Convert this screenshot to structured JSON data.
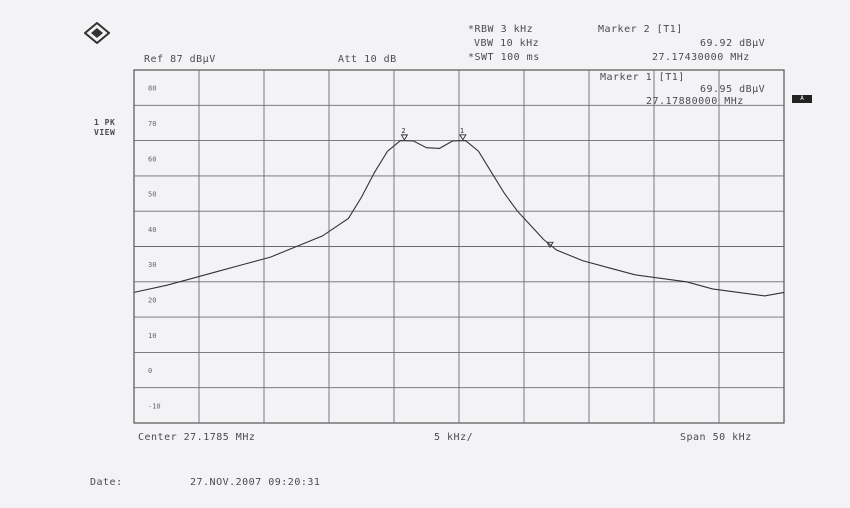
{
  "header": {
    "rbw": "*RBW 3 kHz",
    "vbw": "VBW 10 kHz",
    "swt": "*SWT 100 ms",
    "ref": "Ref 87 dBµV",
    "att": "Att 10 dB",
    "marker2_title": "Marker 2 [T1]",
    "marker2_level": "69.92 dBµV",
    "marker2_freq": "27.17430000 MHz",
    "marker1_title": "Marker 1 [T1]",
    "marker1_level": "69.95 dBµV",
    "marker1_freq": "27.17880000 MHz"
  },
  "left_labels": {
    "rbw_mode": "1 PK",
    "view": "VIEW"
  },
  "side_badge": "A",
  "footer": {
    "center": "Center 27.1785 MHz",
    "div": "5 kHz/",
    "span": "Span 50 kHz",
    "date_label": "Date:",
    "date_value": "27.NOV.2007  09:20:31"
  },
  "chart_data": {
    "type": "line",
    "xlabel": "",
    "ylabel": "",
    "xlim": [
      27.1535,
      27.2035
    ],
    "ylim": [
      -10,
      90
    ],
    "y_ticks": [
      "80",
      "70",
      "60",
      "50",
      "40",
      "30",
      "20",
      "10",
      "0",
      "-10"
    ],
    "grid": true,
    "series": [
      {
        "x": [
          27.1535,
          27.156,
          27.158,
          27.16,
          27.162,
          27.164,
          27.166,
          27.168,
          27.17,
          27.171,
          27.172,
          27.173,
          27.174,
          27.175,
          27.176,
          27.177,
          27.178,
          27.179,
          27.18,
          27.181,
          27.182,
          27.183,
          27.184,
          27.185,
          27.186,
          27.188,
          27.19,
          27.192,
          27.194,
          27.196,
          27.198,
          27.2,
          27.202,
          27.2035
        ],
        "y": [
          27,
          29,
          31,
          33,
          35,
          37,
          40,
          43,
          48,
          54,
          61,
          67,
          70,
          69.9,
          68,
          67.8,
          69.9,
          70,
          67,
          61,
          55,
          50,
          46,
          42,
          39,
          36,
          34,
          32,
          31,
          30,
          28,
          27,
          26,
          27
        ]
      }
    ],
    "markers": [
      {
        "label": "1",
        "x": 27.1788,
        "y": 69.95
      },
      {
        "label": "2",
        "x": 27.1743,
        "y": 69.92
      },
      {
        "label": "",
        "x": 27.1855,
        "y": 39.5
      }
    ]
  }
}
